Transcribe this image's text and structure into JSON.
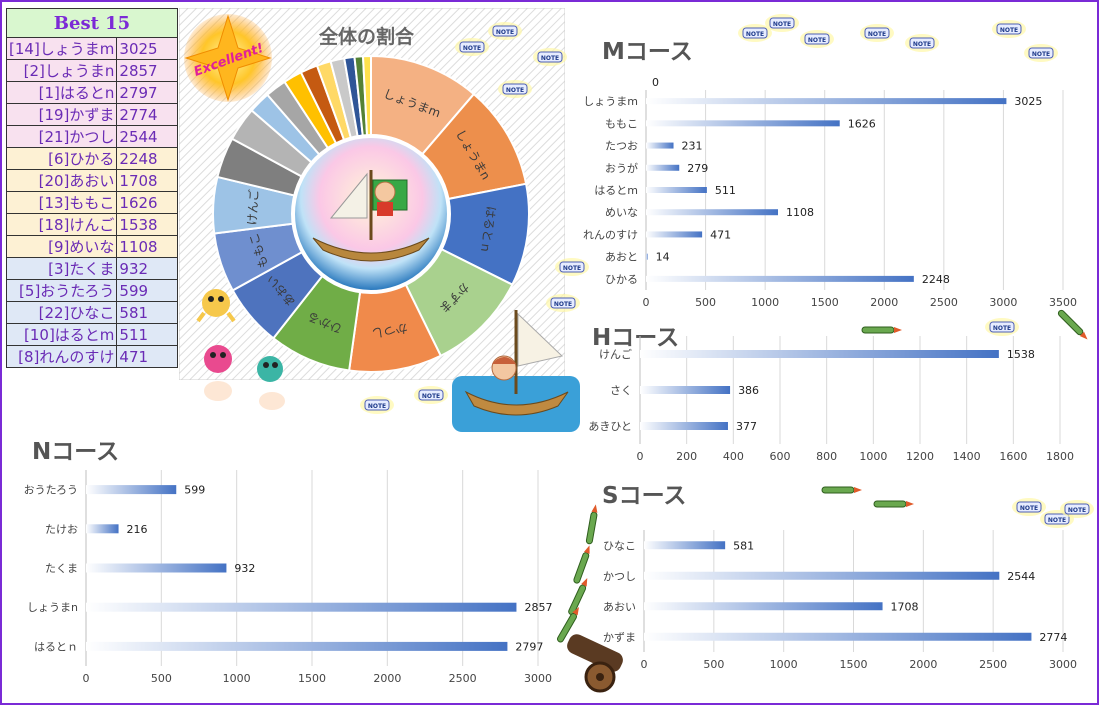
{
  "best": {
    "title": "Best 15",
    "rows": [
      {
        "name": "[14]しょうまm",
        "value": "3025",
        "group": "p1"
      },
      {
        "name": "[2]しょうまn",
        "value": "2857",
        "group": "p1"
      },
      {
        "name": "[1]はるとn",
        "value": "2797",
        "group": "p1"
      },
      {
        "name": "[19]かずま",
        "value": "2774",
        "group": "p1"
      },
      {
        "name": "[21]かつし",
        "value": "2544",
        "group": "p1"
      },
      {
        "name": "[6]ひかる",
        "value": "2248",
        "group": "p2"
      },
      {
        "name": "[20]あおい",
        "value": "1708",
        "group": "p2"
      },
      {
        "name": "[13]ももこ",
        "value": "1626",
        "group": "p2"
      },
      {
        "name": "[18]けんご",
        "value": "1538",
        "group": "p2"
      },
      {
        "name": "[9]めいな",
        "value": "1108",
        "group": "p2"
      },
      {
        "name": "[3]たくま",
        "value": "932",
        "group": "p3"
      },
      {
        "name": "[5]おうたろう",
        "value": "599",
        "group": "p3"
      },
      {
        "name": "[22]ひなこ",
        "value": "581",
        "group": "p3"
      },
      {
        "name": "[10]はるとm",
        "value": "511",
        "group": "p3"
      },
      {
        "name": "[8]れんのすけ",
        "value": "471",
        "group": "p3"
      }
    ]
  },
  "stamp": "Excellent!",
  "note_label": "NOTE",
  "colors": {
    "frame": "#7a2ad6",
    "bar": "#4472c4",
    "grid": "#d9d9d9",
    "best_text": "#6a2bb5"
  },
  "chart_data": [
    {
      "type": "pie",
      "title": "全体の割合",
      "labels": [
        "しょうまm",
        "しょうまn",
        "はるとｎ",
        "かずま",
        "かつし",
        "ひかる",
        "あおい",
        "ももこ",
        "けんご",
        "",
        "",
        "",
        "",
        "",
        "",
        "",
        "",
        "",
        "",
        ""
      ],
      "values": [
        3025,
        2857,
        2797,
        2774,
        2544,
        2248,
        1708,
        1626,
        1538,
        1108,
        932,
        599,
        581,
        511,
        471,
        386,
        377,
        279,
        231,
        216
      ],
      "colors": [
        "#f4b183",
        "#ed8f4c",
        "#4472c4",
        "#a9d18e",
        "#f08a4b",
        "#70ad47",
        "#4e73be",
        "#6f8fcf",
        "#9dc3e6",
        "#7f7f7f",
        "#b4b4b4",
        "#9dc3e6",
        "#a6a6a6",
        "#ffc000",
        "#c55a11",
        "#ffd966",
        "#c9c9c9",
        "#2f5597",
        "#548235",
        "#ffe14d"
      ]
    },
    {
      "type": "bar",
      "title": "Mコース",
      "categories": [
        "しょうまm",
        "ももこ",
        "たつお",
        "おうが",
        "はるとm",
        "めいな",
        "れんのすけ",
        "あおと",
        "ひかる"
      ],
      "values": [
        3025,
        1626,
        231,
        279,
        511,
        1108,
        471,
        14,
        2248
      ],
      "xlim": [
        0,
        3500
      ],
      "ticks": [
        0,
        500,
        1000,
        1500,
        2000,
        2500,
        3000,
        3500
      ],
      "extra_label": "0"
    },
    {
      "type": "bar",
      "title": "Hコース",
      "categories": [
        "けんご",
        "さく",
        "あきひと"
      ],
      "values": [
        1538,
        386,
        377
      ],
      "xlim": [
        0,
        1800
      ],
      "ticks": [
        0,
        200,
        400,
        600,
        800,
        1000,
        1200,
        1400,
        1600,
        1800
      ]
    },
    {
      "type": "bar",
      "title": "Nコース",
      "categories": [
        "おうたろう",
        "たけお",
        "たくま",
        "しょうまn",
        "はるとｎ"
      ],
      "values": [
        599,
        216,
        932,
        2857,
        2797
      ],
      "xlim": [
        0,
        3000
      ],
      "ticks": [
        0,
        500,
        1000,
        1500,
        2000,
        2500,
        3000
      ]
    },
    {
      "type": "bar",
      "title": "Sコース",
      "categories": [
        "ひなこ",
        "かつし",
        "あおい",
        "かずま"
      ],
      "values": [
        581,
        2544,
        1708,
        2774
      ],
      "xlim": [
        0,
        3000
      ],
      "ticks": [
        0,
        500,
        1000,
        1500,
        2000,
        2500,
        3000
      ]
    }
  ]
}
